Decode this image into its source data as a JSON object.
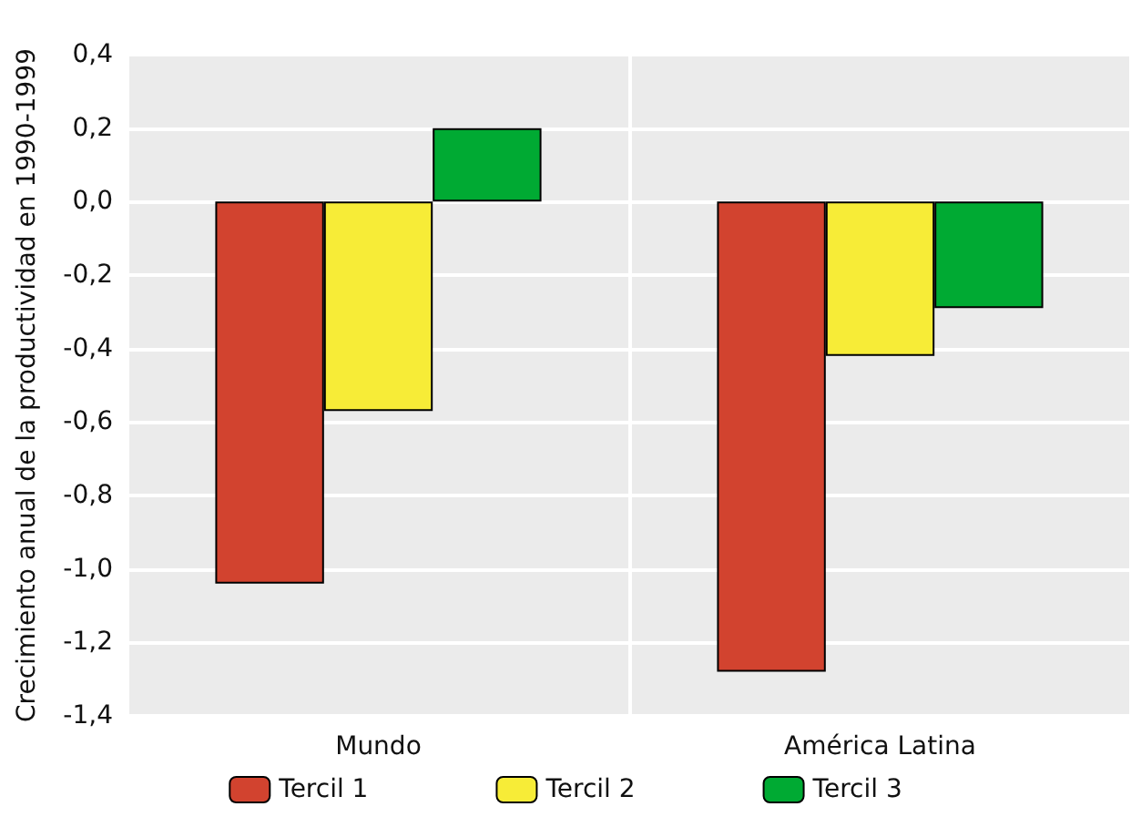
{
  "chart_data": {
    "type": "bar",
    "ylabel": "Crecimiento anual de la productividad en 1990-1999",
    "categories": [
      "Mundo",
      "América Latina"
    ],
    "series": [
      {
        "name": "Tercil 1",
        "color": "#d2432f",
        "values": [
          -1.04,
          -1.28
        ]
      },
      {
        "name": "Tercil 2",
        "color": "#f7ec37",
        "values": [
          -0.57,
          -0.42
        ]
      },
      {
        "name": "Tercil 3",
        "color": "#00aa33",
        "values": [
          0.2,
          -0.29
        ]
      }
    ],
    "ylim": [
      -1.4,
      0.4
    ],
    "yticks": [
      {
        "value": -1.4,
        "label": "-1,4"
      },
      {
        "value": -1.2,
        "label": "-1,2"
      },
      {
        "value": -1.0,
        "label": "-1,0"
      },
      {
        "value": -0.8,
        "label": "-0,8"
      },
      {
        "value": -0.6,
        "label": "-0,6"
      },
      {
        "value": -0.4,
        "label": "-0,4"
      },
      {
        "value": -0.2,
        "label": "-0,2"
      },
      {
        "value": 0,
        "label": "0,0"
      },
      {
        "value": 0.2,
        "label": "0,2"
      },
      {
        "value": 0.4,
        "label": "0,4"
      }
    ],
    "grid": true,
    "legend": "bottom"
  }
}
